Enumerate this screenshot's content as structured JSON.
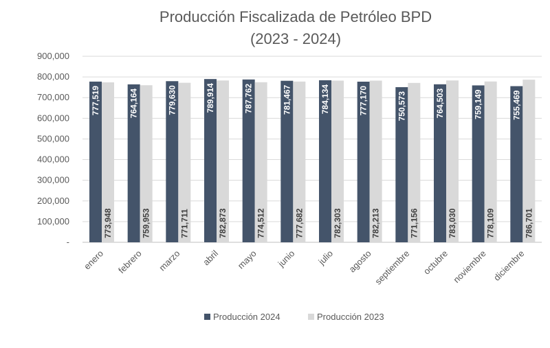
{
  "chart_data": {
    "type": "bar",
    "title": [
      "Producción Fiscalizada de Petróleo BPD",
      "(2023 - 2024)"
    ],
    "categories": [
      "enero",
      "febrero",
      "marzo",
      "abril",
      "mayo",
      "junio",
      "julio",
      "agosto",
      "septiembre",
      "octubre",
      "noviembre",
      "diciembre"
    ],
    "series": [
      {
        "name": "Producción 2024",
        "color": "#44546a",
        "values": [
          777519,
          764164,
          779630,
          789914,
          787762,
          781467,
          784134,
          777170,
          750573,
          764503,
          759149,
          755469
        ],
        "labels": [
          "777,519",
          "764,164",
          "779,630",
          "789,914",
          "787,762",
          "781,467",
          "784,134",
          "777,170",
          "750,573",
          "764,503",
          "759,149",
          "755,469"
        ]
      },
      {
        "name": "Producción 2023",
        "color": "#d9d9d9",
        "values": [
          773948,
          759953,
          771711,
          782873,
          774512,
          777682,
          782303,
          782213,
          771156,
          783030,
          778109,
          786701
        ],
        "labels": [
          "773,948",
          "759,953",
          "771,711",
          "782,873",
          "774,512",
          "777,682",
          "782,303",
          "782,213",
          "771,156",
          "783,030",
          "778,109",
          "786,701"
        ]
      }
    ],
    "ylim": [
      0,
      900000
    ],
    "yticks": [
      0,
      100000,
      200000,
      300000,
      400000,
      500000,
      600000,
      700000,
      800000,
      900000
    ],
    "ytick_labels": [
      "-",
      "100,000",
      "200,000",
      "300,000",
      "400,000",
      "500,000",
      "600,000",
      "700,000",
      "800,000",
      "900,000"
    ],
    "grid": true,
    "legend_position": "bottom"
  }
}
